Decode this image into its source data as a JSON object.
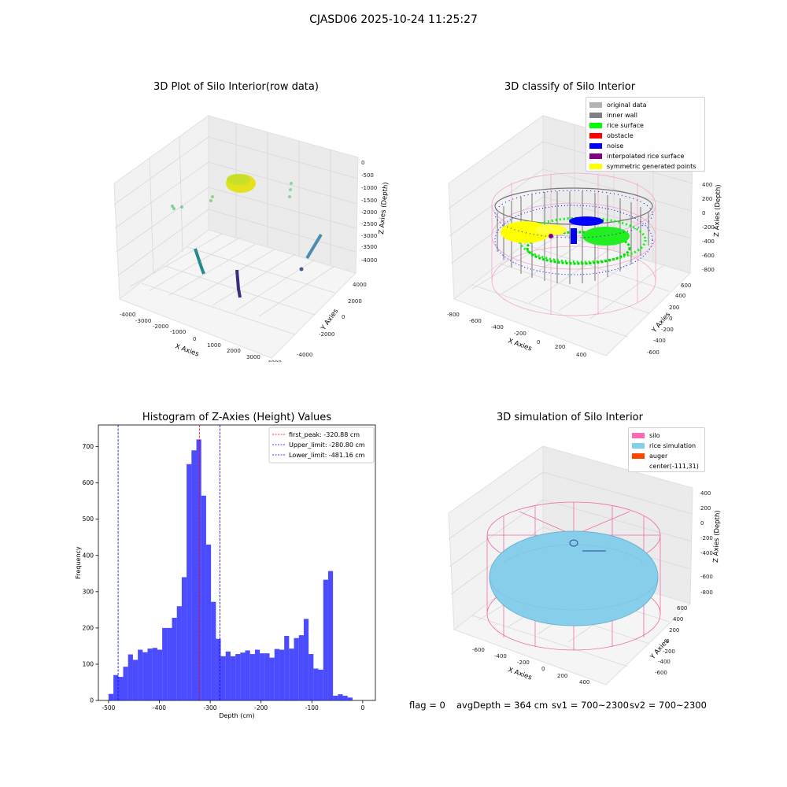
{
  "figure_title": "CJASD06 2025-10-24 11:25:27",
  "plot1": {
    "title": "3D Plot of Silo Interior(row data)",
    "xlabel": "X Axies",
    "ylabel": "Y Axies",
    "zlabel": "Z Axies (Depth)",
    "xticks": [
      "-4000",
      "-3000",
      "-2000",
      "-1000",
      "0",
      "1000",
      "2000",
      "3000",
      "4000"
    ],
    "yticks": [
      "-4000",
      "-2000",
      "0",
      "2000",
      "4000"
    ],
    "zticks": [
      "0",
      "-500",
      "-1000",
      "-1500",
      "-2000",
      "-2500",
      "-3000",
      "-3500",
      "-4000"
    ]
  },
  "plot2": {
    "title": "3D classify of Silo Interior",
    "xlabel": "X Axies",
    "ylabel": "Y Axies",
    "zlabel": "Z Axies (Depth)",
    "xticks": [
      "-800",
      "-600",
      "-400",
      "-200",
      "0",
      "200",
      "400"
    ],
    "yticks": [
      "-600",
      "-400",
      "-200",
      "0",
      "200",
      "400",
      "600"
    ],
    "zticks": [
      "400",
      "200",
      "0",
      "-200",
      "-400",
      "-600",
      "-800"
    ],
    "legend": [
      {
        "label": "original data",
        "color": "#b3b3b3"
      },
      {
        "label": "inner wall",
        "color": "#808080"
      },
      {
        "label": "rice surface",
        "color": "#00ff00"
      },
      {
        "label": "obstacle",
        "color": "#ff0000"
      },
      {
        "label": "noise",
        "color": "#0000ff"
      },
      {
        "label": "interpolated rice surface",
        "color": "#800080"
      },
      {
        "label": "symmetric generated points",
        "color": "#ffff00"
      }
    ]
  },
  "plot3": {
    "title": "3D simulation of Silo Interior",
    "xlabel": "X Axies",
    "ylabel": "Y Axies",
    "zlabel": "Z Axies (Depth)",
    "xticks": [
      "-600",
      "-400",
      "-200",
      "0",
      "200",
      "400"
    ],
    "yticks": [
      "-600",
      "-400",
      "-200",
      "0",
      "200",
      "400",
      "600"
    ],
    "zticks": [
      "400",
      "200",
      "0",
      "-200",
      "-400",
      "-600",
      "-800"
    ],
    "legend": [
      {
        "label": "silo",
        "color": "#ff69b4"
      },
      {
        "label": "rice simulation",
        "color": "#87ceeb"
      },
      {
        "label": "auger",
        "color": "#ff4500"
      },
      {
        "label": "center(-111,31)",
        "color": ""
      }
    ]
  },
  "status": {
    "flag": "flag = 0",
    "avg": "avgDepth = 364 cm",
    "sv1": "sv1 = 700~2300",
    "sv2": "sv2 = 700~2300"
  },
  "chart_data": {
    "type": "bar",
    "title": "Histogram of Z-Axies (Height) Values",
    "xlabel": "Depth (cm)",
    "ylabel": "Frequency",
    "xlim": [
      -520,
      25
    ],
    "ylim": [
      0,
      760
    ],
    "xticks": [
      -500,
      -400,
      -300,
      -200,
      -100,
      0
    ],
    "yticks": [
      0,
      100,
      200,
      300,
      400,
      500,
      600,
      700
    ],
    "bar_color": "#0000ff",
    "bins_start": -500,
    "bin_width": 9.6,
    "values": [
      18,
      70,
      65,
      93,
      127,
      112,
      140,
      133,
      143,
      145,
      140,
      200,
      200,
      228,
      260,
      340,
      652,
      690,
      720,
      565,
      430,
      272,
      170,
      122,
      135,
      122,
      128,
      132,
      138,
      128,
      140,
      130,
      130,
      118,
      142,
      140,
      178,
      143,
      172,
      180,
      225,
      128,
      88,
      85,
      333,
      357,
      13,
      17,
      13,
      8
    ],
    "lines": [
      {
        "label": "first_peak: -320.88 cm",
        "x": -320.88,
        "color": "#ff0000"
      },
      {
        "label": "Upper_limit: -280.80 cm",
        "x": -280.8,
        "color": "#0000ff"
      },
      {
        "label": "Lower_limit: -481.16 cm",
        "x": -481.16,
        "color": "#0000ff"
      }
    ],
    "legend_position": "top-right"
  }
}
